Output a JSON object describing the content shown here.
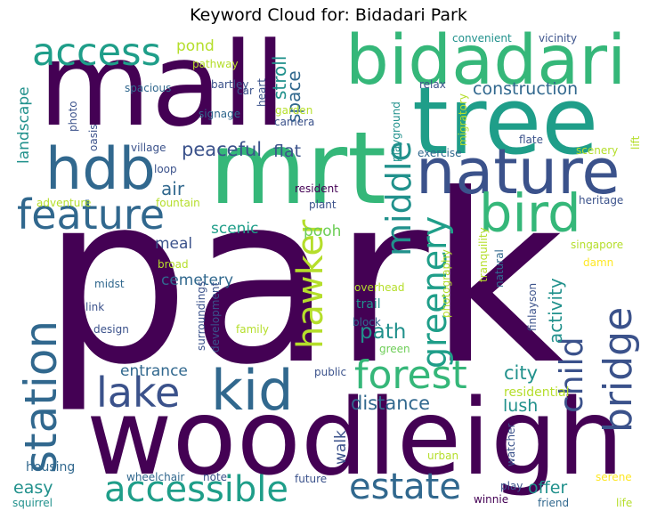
{
  "title": "Keyword Cloud for: Bidadari Park",
  "colors": {
    "dark_purple": "#440154",
    "indigo": "#3b528b",
    "blue_teal": "#31688e",
    "teal": "#21918c",
    "sea_green": "#1f9e89",
    "green": "#35b779",
    "light_green": "#6ece58",
    "lime": "#b5de2b",
    "yellow": "#fde725"
  },
  "words": {
    "park": "park",
    "woodleigh": "woodleigh",
    "mall": "mall",
    "mrt": "mrt",
    "tree": "tree",
    "bidadari": "bidadari",
    "nature": "nature",
    "station": "station",
    "kid": "kid",
    "bird": "bird",
    "hdb": "hdb",
    "feature": "feature",
    "access": "access",
    "accessible": "accessible",
    "lake": "lake",
    "forest": "forest",
    "bridge": "bridge",
    "estate": "estate",
    "hawker": "hawker",
    "greenery": "greenery",
    "middle": "middle",
    "child": "child",
    "construction": "construction",
    "peaceful": "peaceful",
    "path": "path",
    "distance": "distance",
    "city": "city",
    "activity": "activity",
    "space": "space",
    "stroll": "stroll",
    "flat": "flat",
    "air": "air",
    "scenic": "scenic",
    "pooh": "pooh",
    "meal": "meal",
    "cemetery": "cemetery",
    "entrance": "entrance",
    "easy": "easy",
    "lush": "lush",
    "offer": "offer",
    "walk": "walk",
    "pond": "pond",
    "landscape": "landscape",
    "housing": "housing",
    "wheelchair": "wheelchair",
    "squirrel": "squirrel",
    "note": "note",
    "future": "future",
    "play": "play",
    "winnie": "winnie",
    "friend": "friend",
    "life": "life",
    "serene": "serene",
    "urban": "urban",
    "watcher": "watcher",
    "residential": "residential",
    "public": "public",
    "green": "green",
    "block": "block",
    "overhead": "overhead",
    "trail": "trail",
    "finlayson": "finlayson",
    "photography": "photography",
    "natural": "natural",
    "tranquility": "tranquility",
    "damn": "damn",
    "singapore": "singapore",
    "heritage": "heritage",
    "plant": "plant",
    "resident": "resident",
    "fountain": "fountain",
    "adventure": "adventure",
    "broad": "broad",
    "midst": "midst",
    "link": "link",
    "design": "design",
    "surroundings": "surroundings",
    "development": "development",
    "family": "family",
    "loop": "loop",
    "village": "village",
    "camera": "camera",
    "garden": "garden",
    "signage": "signage",
    "bartley": "bartley",
    "car": "car",
    "spacious": "spacious",
    "pathway": "pathway",
    "photo": "photo",
    "oasis": "oasis",
    "heart": "heart",
    "relax": "relax",
    "playground": "playground",
    "migratory": "migratory",
    "exercise": "exercise",
    "flate": "flate",
    "scenery": "scenery",
    "lift": "lift",
    "convenient": "convenient",
    "vicinity": "vicinity"
  }
}
